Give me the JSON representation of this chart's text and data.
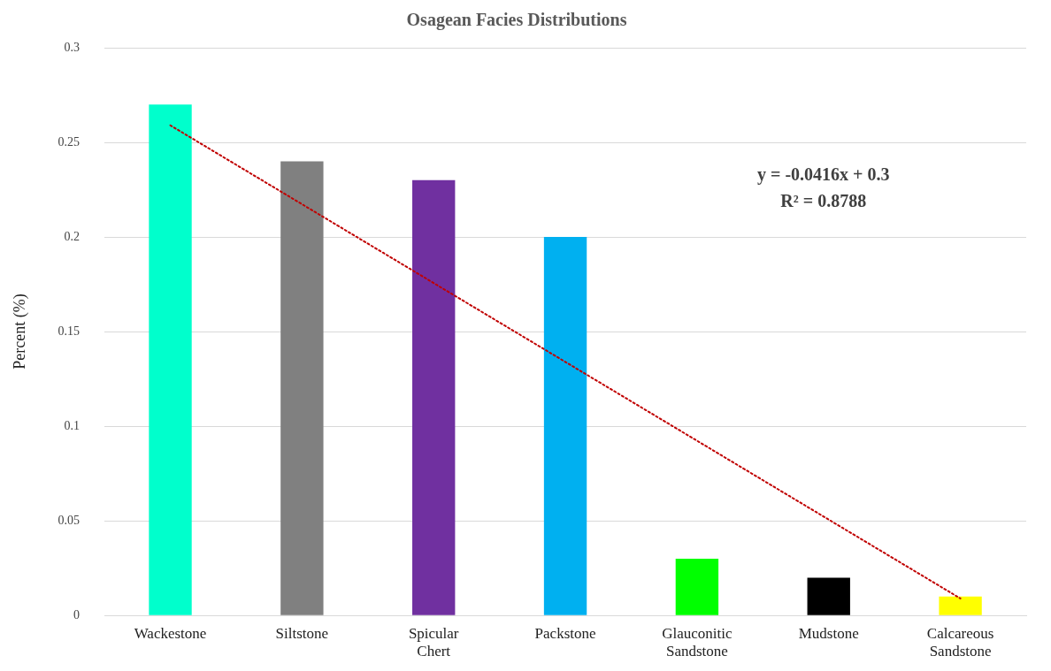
{
  "chart_data": {
    "type": "bar",
    "title": "Osagean Facies Distributions",
    "ylabel": "Percent (%)",
    "categories": [
      "Wackestone",
      "Siltstone",
      "Spicular Chert",
      "Packstone",
      "Glauconitic Sandstone",
      "Mudstone",
      "Calcareous Sandstone"
    ],
    "series": [
      {
        "colors": [
          "#00ffcc",
          "#808080",
          "#7030a0",
          "#00b0f0",
          "#00ff00",
          "#000000",
          "#ffff00"
        ],
        "values": [
          0.27,
          0.24,
          0.23,
          0.2,
          0.03,
          0.02,
          0.01
        ]
      },
      {
        "type": "line",
        "color": "#c00000",
        "line_style": "dotted",
        "marker": "none",
        "x": [
          "Wackestone",
          "Calcareous Sandstone"
        ],
        "values": [
          0.259,
          0.009
        ]
      }
    ],
    "ylim": [
      0,
      0.3
    ],
    "yticks": [
      0,
      0.05,
      0.1,
      0.15,
      0.2,
      0.25,
      0.3
    ],
    "grid": "y",
    "legend": false,
    "annotations": [
      "y = -0.0416x + 0.3",
      "R² = 0.8788"
    ]
  }
}
